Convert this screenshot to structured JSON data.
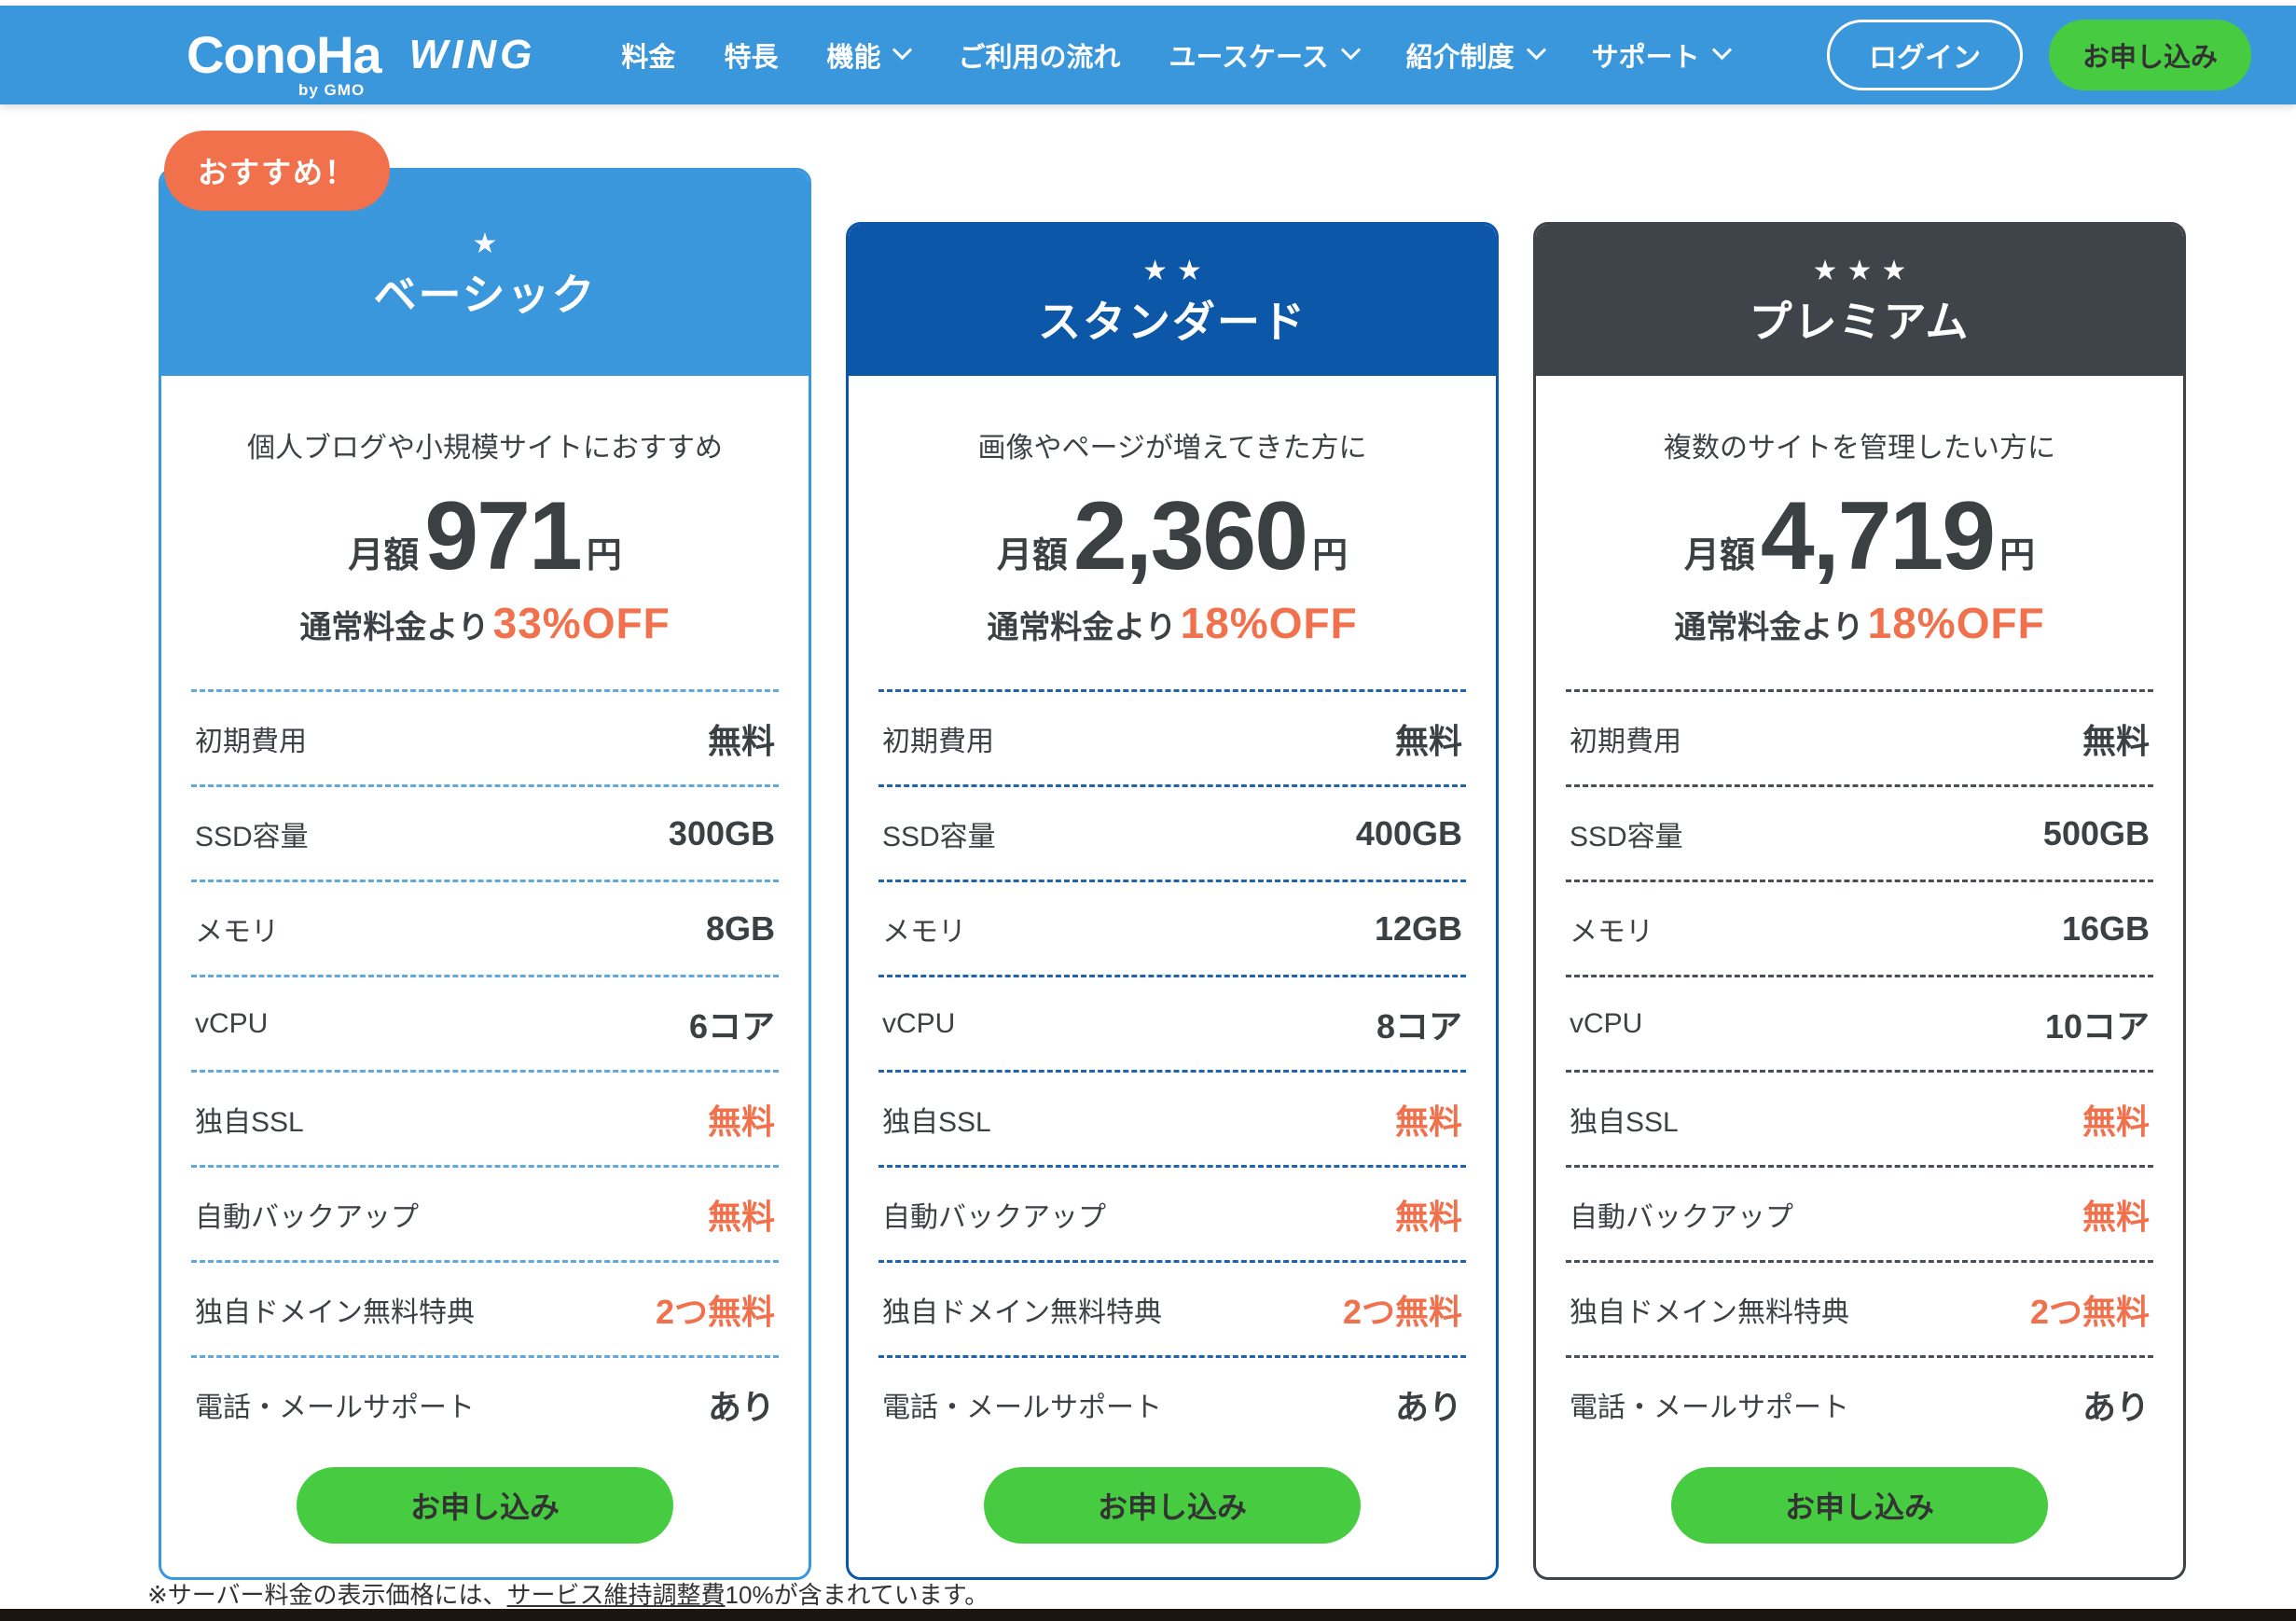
{
  "nav": {
    "logo": {
      "brand": "ConoHa",
      "by": "by GMO",
      "product": "WING"
    },
    "items": [
      {
        "label": "料金",
        "has_dropdown": false
      },
      {
        "label": "特長",
        "has_dropdown": false
      },
      {
        "label": "機能",
        "has_dropdown": true
      },
      {
        "label": "ご利用の流れ",
        "has_dropdown": false
      },
      {
        "label": "ユースケース",
        "has_dropdown": true
      },
      {
        "label": "紹介制度",
        "has_dropdown": true
      },
      {
        "label": "サポート",
        "has_dropdown": true
      }
    ],
    "login_label": "ログイン",
    "apply_label": "お申し込み"
  },
  "badge": {
    "label": "おすすめ！"
  },
  "colors": {
    "nav_blue": "#3b97dc",
    "standard_blue": "#0d57a8",
    "premium_dark": "#3f444b",
    "accent_orange": "#f0714c",
    "cta_green": "#47cc41"
  },
  "plans": [
    {
      "name": "ベーシック",
      "stars": "★",
      "theme_color": "#3b97dc",
      "dash_color": "#5fa8dc",
      "tagline": "個人ブログや小規模サイトにおすすめ",
      "price_prefix": "月額",
      "price": "971",
      "price_suffix": "円",
      "discount_prefix": "通常料金より",
      "discount": "33%OFF",
      "rows": [
        {
          "label": "初期費用",
          "value": "無料",
          "accent": false
        },
        {
          "label": "SSD容量",
          "value": "300GB",
          "accent": false
        },
        {
          "label": "メモリ",
          "value": "8GB",
          "accent": false
        },
        {
          "label": "vCPU",
          "value": "6コア",
          "accent": false
        },
        {
          "label": "独自SSL",
          "value": "無料",
          "accent": true
        },
        {
          "label": "自動バックアップ",
          "value": "無料",
          "accent": true
        },
        {
          "label": "独自ドメイン無料特典",
          "value": "2つ無料",
          "accent": true
        },
        {
          "label": "電話・メールサポート",
          "value": "あり",
          "accent": false
        }
      ],
      "cta": "お申し込み"
    },
    {
      "name": "スタンダード",
      "stars": "★★",
      "theme_color": "#0d57a8",
      "dash_color": "#1e63ae",
      "tagline": "画像やページが増えてきた方に",
      "price_prefix": "月額",
      "price": "2,360",
      "price_suffix": "円",
      "discount_prefix": "通常料金より",
      "discount": "18%OFF",
      "rows": [
        {
          "label": "初期費用",
          "value": "無料",
          "accent": false
        },
        {
          "label": "SSD容量",
          "value": "400GB",
          "accent": false
        },
        {
          "label": "メモリ",
          "value": "12GB",
          "accent": false
        },
        {
          "label": "vCPU",
          "value": "8コア",
          "accent": false
        },
        {
          "label": "独自SSL",
          "value": "無料",
          "accent": true
        },
        {
          "label": "自動バックアップ",
          "value": "無料",
          "accent": true
        },
        {
          "label": "独自ドメイン無料特典",
          "value": "2つ無料",
          "accent": true
        },
        {
          "label": "電話・メールサポート",
          "value": "あり",
          "accent": false
        }
      ],
      "cta": "お申し込み"
    },
    {
      "name": "プレミアム",
      "stars": "★★★",
      "theme_color": "#3f444b",
      "dash_color": "#4a4e55",
      "tagline": "複数のサイトを管理したい方に",
      "price_prefix": "月額",
      "price": "4,719",
      "price_suffix": "円",
      "discount_prefix": "通常料金より",
      "discount": "18%OFF",
      "rows": [
        {
          "label": "初期費用",
          "value": "無料",
          "accent": false
        },
        {
          "label": "SSD容量",
          "value": "500GB",
          "accent": false
        },
        {
          "label": "メモリ",
          "value": "16GB",
          "accent": false
        },
        {
          "label": "vCPU",
          "value": "10コア",
          "accent": false
        },
        {
          "label": "独自SSL",
          "value": "無料",
          "accent": true
        },
        {
          "label": "自動バックアップ",
          "value": "無料",
          "accent": true
        },
        {
          "label": "独自ドメイン無料特典",
          "value": "2つ無料",
          "accent": true
        },
        {
          "label": "電話・メールサポート",
          "value": "あり",
          "accent": false
        }
      ],
      "cta": "お申し込み"
    }
  ],
  "footer": {
    "note_prefix": "※サーバー料金の表示価格には、",
    "note_link": "サービス維持調整費",
    "note_suffix": "10%が含まれています。"
  }
}
